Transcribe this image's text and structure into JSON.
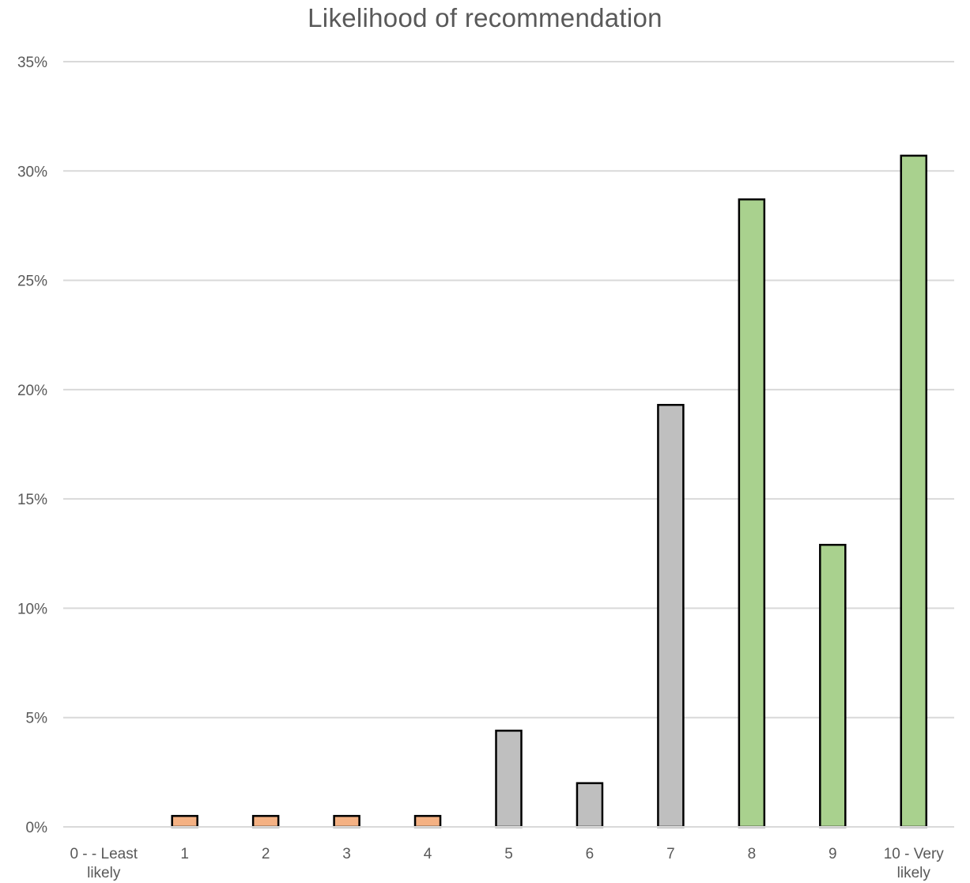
{
  "chart_data": {
    "type": "bar",
    "title": "Likelihood of recommendation",
    "xlabel": "",
    "ylabel": "",
    "categories": [
      "0 - - Least likely",
      "1",
      "2",
      "3",
      "4",
      "5",
      "6",
      "7",
      "8",
      "9",
      "10 - Very likely"
    ],
    "category_lines": [
      [
        "0 - - Least",
        "likely"
      ],
      [
        "1"
      ],
      [
        "2"
      ],
      [
        "3"
      ],
      [
        "4"
      ],
      [
        "5"
      ],
      [
        "6"
      ],
      [
        "7"
      ],
      [
        "8"
      ],
      [
        "9"
      ],
      [
        "10 - Very",
        "likely"
      ]
    ],
    "values": [
      0,
      0.5,
      0.5,
      0.5,
      0.5,
      4.4,
      2.0,
      19.3,
      28.7,
      12.9,
      30.7
    ],
    "bar_colors": [
      "#f4b183",
      "#f4b183",
      "#f4b183",
      "#f4b183",
      "#f4b183",
      "#bfbfbf",
      "#bfbfbf",
      "#bfbfbf",
      "#a9d18e",
      "#a9d18e",
      "#a9d18e"
    ],
    "ylim": [
      0,
      35
    ],
    "yticks": [
      0,
      5,
      10,
      15,
      20,
      25,
      30,
      35
    ],
    "ytick_labels": [
      "0%",
      "5%",
      "10%",
      "15%",
      "20%",
      "25%",
      "30%",
      "35%"
    ],
    "grid": true,
    "legend": "none"
  }
}
